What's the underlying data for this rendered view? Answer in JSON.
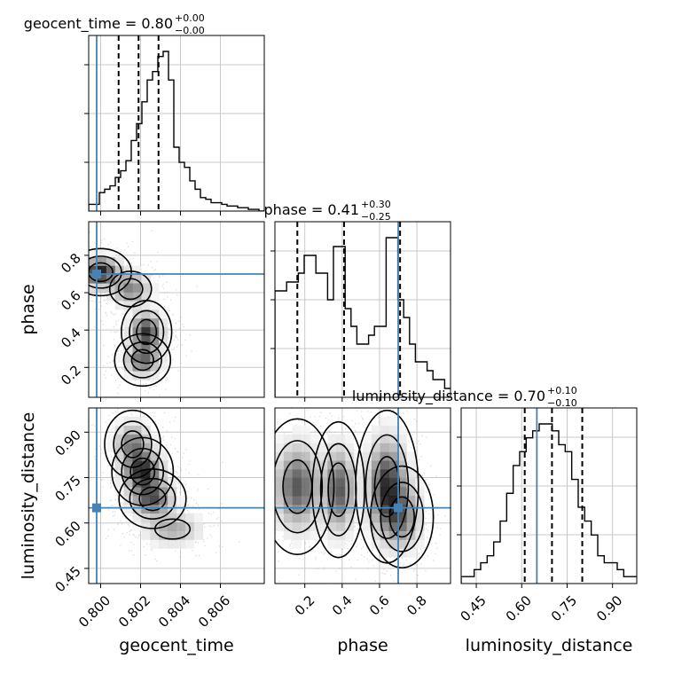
{
  "chart_data": {
    "type": "corner",
    "parameters": [
      "geocent_time",
      "phase",
      "luminosity_distance"
    ],
    "axis_labels": {
      "geocent_time": "geocent_time",
      "phase": "phase",
      "luminosity_distance": "luminosity_distance"
    },
    "ranges": {
      "geocent_time": [
        0.7994,
        0.8082
      ],
      "phase": [
        0.04,
        0.98
      ],
      "luminosity_distance": [
        0.4,
        0.98
      ]
    },
    "ticks": {
      "geocent_time": [
        {
          "v": 0.8,
          "t": "0.800"
        },
        {
          "v": 0.802,
          "t": "0.802"
        },
        {
          "v": 0.804,
          "t": "0.804"
        },
        {
          "v": 0.806,
          "t": "0.806"
        }
      ],
      "phase": [
        {
          "v": 0.2,
          "t": "0.2"
        },
        {
          "v": 0.4,
          "t": "0.4"
        },
        {
          "v": 0.6,
          "t": "0.6"
        },
        {
          "v": 0.8,
          "t": "0.8"
        }
      ],
      "luminosity_distance": [
        {
          "v": 0.45,
          "t": "0.45"
        },
        {
          "v": 0.6,
          "t": "0.60"
        },
        {
          "v": 0.75,
          "t": "0.75"
        },
        {
          "v": 0.9,
          "t": "0.90"
        }
      ]
    },
    "titles": [
      {
        "param": "geocent_time",
        "prefix": "geocent_time = 0.80",
        "plus": "+0.00",
        "minus": "−0.00"
      },
      {
        "param": "phase",
        "prefix": "phase = 0.41",
        "plus": "+0.30",
        "minus": "−0.25"
      },
      {
        "param": "luminosity_distance",
        "prefix": "luminosity_distance = 0.70",
        "plus": "+0.10",
        "minus": "−0.10"
      }
    ],
    "truths": {
      "geocent_time": 0.7998,
      "phase": 0.7,
      "luminosity_distance": 0.65
    },
    "quantiles": {
      "geocent_time": [
        0.8009,
        0.8019,
        0.8029
      ],
      "phase": [
        0.16,
        0.41,
        0.71
      ],
      "luminosity_distance": [
        0.61,
        0.7,
        0.8
      ]
    },
    "histograms": {
      "geocent_time": {
        "edges_start": 0.7994,
        "edges_end": 0.8082,
        "counts": [
          4,
          4,
          11,
          13,
          15,
          20,
          24,
          30,
          42,
          52,
          65,
          78,
          83,
          92,
          95,
          78,
          38,
          29,
          26,
          18,
          13,
          8,
          7,
          5,
          5,
          4,
          3,
          3,
          2,
          2,
          1,
          1,
          0
        ]
      },
      "phase": {
        "edges_start": 0.04,
        "edges_end": 0.98,
        "counts": [
          12,
          12,
          13,
          13,
          14,
          16,
          16,
          14,
          14,
          11,
          17,
          17,
          10,
          8,
          6,
          6,
          7,
          8,
          8,
          18,
          18,
          11,
          9,
          6,
          4,
          4,
          3,
          2,
          2,
          1
        ]
      },
      "luminosity_distance": {
        "edges_start": 0.4,
        "edges_end": 0.98,
        "counts": [
          1,
          1,
          2,
          3,
          4,
          6,
          9,
          13,
          17,
          19,
          21,
          22,
          23,
          23,
          22,
          20,
          19,
          15,
          11,
          9,
          7,
          4,
          3,
          3,
          2,
          1,
          1
        ]
      }
    },
    "pairs": [
      {
        "x": "geocent_time",
        "y": "phase",
        "modes": [
          {
            "x": 0.8,
            "y": 0.71,
            "sx": 0.00055,
            "sy": 0.045,
            "w": 0.9
          },
          {
            "x": 0.8015,
            "y": 0.62,
            "sx": 0.00055,
            "sy": 0.05,
            "w": 0.5
          },
          {
            "x": 0.8023,
            "y": 0.39,
            "sx": 0.00045,
            "sy": 0.06,
            "w": 0.8
          },
          {
            "x": 0.8021,
            "y": 0.24,
            "sx": 0.0005,
            "sy": 0.05,
            "w": 0.6
          }
        ]
      },
      {
        "x": "geocent_time",
        "y": "luminosity_distance",
        "modes": [
          {
            "x": 0.8016,
            "y": 0.86,
            "sx": 0.0005,
            "sy": 0.04,
            "w": 0.6
          },
          {
            "x": 0.8021,
            "y": 0.77,
            "sx": 0.00055,
            "sy": 0.04,
            "w": 1.0
          },
          {
            "x": 0.8026,
            "y": 0.68,
            "sx": 0.0006,
            "sy": 0.035,
            "w": 0.8
          },
          {
            "x": 0.8036,
            "y": 0.58,
            "sx": 0.0008,
            "sy": 0.03,
            "w": 0.4
          }
        ]
      },
      {
        "x": "phase",
        "y": "luminosity_distance",
        "modes": [
          {
            "x": 0.16,
            "y": 0.72,
            "sx": 0.07,
            "sy": 0.08,
            "w": 0.8
          },
          {
            "x": 0.38,
            "y": 0.71,
            "sx": 0.05,
            "sy": 0.08,
            "w": 0.8
          },
          {
            "x": 0.64,
            "y": 0.72,
            "sx": 0.06,
            "sy": 0.09,
            "w": 1.0
          },
          {
            "x": 0.72,
            "y": 0.62,
            "sx": 0.06,
            "sy": 0.06,
            "w": 0.6
          }
        ]
      }
    ],
    "colors": {
      "truth": "#4682b4",
      "line": "#000000",
      "grid": "#c8c8c8",
      "points": "#9a9a9a"
    },
    "grid": true
  }
}
